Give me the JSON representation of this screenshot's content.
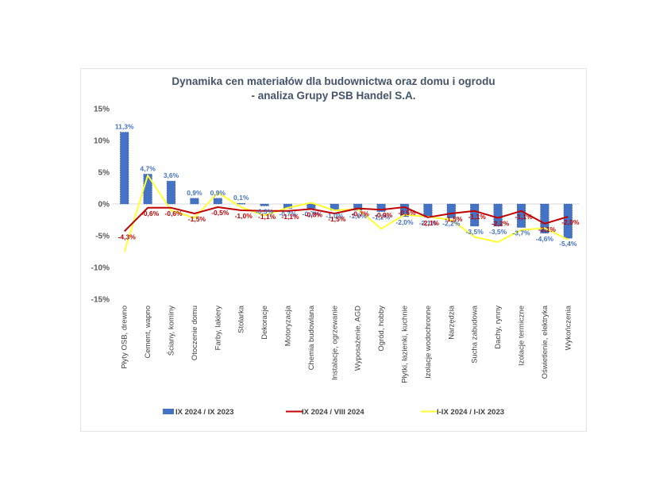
{
  "chart_data": {
    "type": "bar",
    "title": [
      "Dynamika cen materiałów dla budownictwa oraz domu i ogrodu",
      "- analiza Grupy PSB Handel S.A."
    ],
    "categories": [
      "Płyty OSB, drewno",
      "Cement, wapno",
      "Ściany, kominy",
      "Otoczenie domu",
      "Farby, lakiery",
      "Stolarka",
      "Dekoracje",
      "Motoryzacja",
      "Chemia budowlana",
      "Instalacje, ogrzewanie",
      "Wyposażenie, AGD",
      "Ogród, hobby",
      "Płytki, łazienki, kuchnie",
      "Izolacje wodochronne",
      "Narzędzia",
      "Sucha zabudowa",
      "Dachy, rynny",
      "Izolacje termiczne",
      "Oświetlenie, elektryka",
      "Wykończenia"
    ],
    "ylim": [
      -15,
      15
    ],
    "yticks": [
      15,
      10,
      5,
      0,
      -5,
      -10,
      -15
    ],
    "ytick_labels": [
      "15%",
      "10%",
      "5%",
      "0%",
      "-5%",
      "-10%",
      "-15%"
    ],
    "grid": false,
    "legend_position": "bottom",
    "series": [
      {
        "name": "IX 2024 / IX 2023",
        "type": "bar",
        "color": "#4472c4",
        "values": [
          11.3,
          4.7,
          3.6,
          0.9,
          0.9,
          0.1,
          -0.3,
          -0.7,
          -0.7,
          -1.0,
          -1.0,
          -1.2,
          -2.0,
          -2.1,
          -2.2,
          -3.5,
          -3.5,
          -3.7,
          -4.6,
          -5.4
        ],
        "labels": [
          "11,3%",
          "4,7%",
          "3,6%",
          "0,9%",
          "0,9%",
          "0,1%",
          "-0,3%",
          "-0,7%",
          "-0,7%",
          "-1,0%",
          "-1,0%",
          "-1,2%",
          "-2,0%",
          "-2,1%",
          "-2,2%",
          "-3,5%",
          "-3,5%",
          "-3,7%",
          "-4,6%",
          "-5,4%"
        ]
      },
      {
        "name": "IX 2024 / VIII 2024",
        "type": "line",
        "color": "#c00000",
        "values": [
          -4.3,
          -0.6,
          -0.6,
          -1.5,
          -0.5,
          -1.0,
          -1.1,
          -1.1,
          -0.8,
          -1.5,
          -0.7,
          -0.9,
          -0.5,
          -2.1,
          -1.5,
          -1.1,
          -2.2,
          -1.1,
          -3.1,
          -2.0
        ],
        "labels": [
          "-4,3%",
          "-0,6%",
          "-0,6%",
          "-1,5%",
          "-0,5%",
          "-1,0%",
          "-1,1%",
          "-1,1%",
          "-0,8%",
          "-1,5%",
          "-0,7%",
          "-0,9%",
          "-0,5%",
          "-2,1%",
          "-1,5%",
          "-1,1%",
          "-2,2%",
          "-1,1%",
          "-3,1%",
          "-2,0%"
        ]
      },
      {
        "name": "I-IX 2024 / I-IX 2023",
        "type": "line",
        "color": "#ffff33",
        "values": [
          -7.5,
          4.5,
          -1.0,
          -2.2,
          1.8,
          -0.5,
          -1.8,
          -0.6,
          0.2,
          -1.0,
          -0.8,
          -3.9,
          -1.7,
          -2.0,
          -2.5,
          -5.2,
          -6.0,
          -4.1,
          -3.8,
          -5.6
        ]
      }
    ]
  }
}
